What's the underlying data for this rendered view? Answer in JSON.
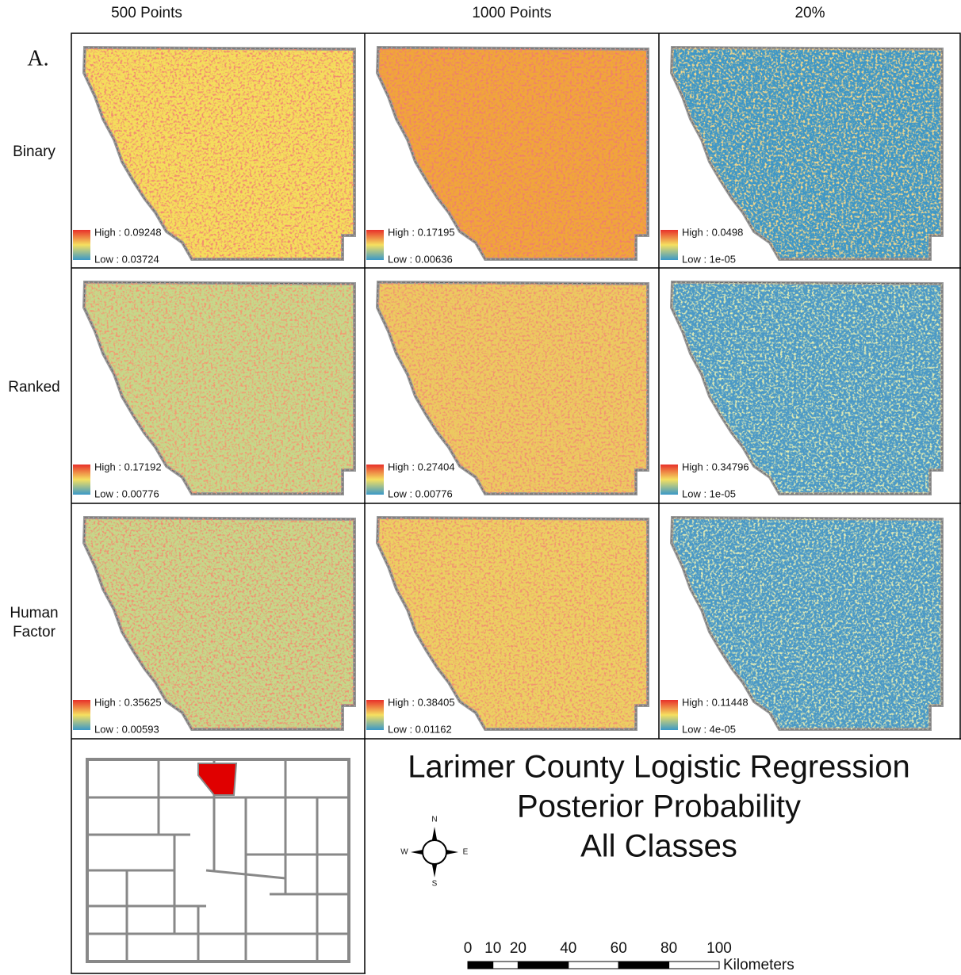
{
  "column_headers": [
    "500 Points",
    "1000 Points",
    "20%"
  ],
  "panel_label": "A.",
  "rows": [
    {
      "label": "Binary",
      "panels": [
        {
          "high": "High : 0.09248",
          "low": "Low : 0.03724"
        },
        {
          "high": "High : 0.17195",
          "low": "Low : 0.00636"
        },
        {
          "high": "High : 0.0498",
          "low": "Low : 1e-05"
        }
      ]
    },
    {
      "label": "Ranked",
      "panels": [
        {
          "high": "High : 0.17192",
          "low": "Low : 0.00776"
        },
        {
          "high": "High : 0.27404",
          "low": "Low : 0.00776"
        },
        {
          "high": "High : 0.34796",
          "low": "Low : 1e-05"
        }
      ]
    },
    {
      "label": "Human Factor",
      "panels": [
        {
          "high": "High : 0.35625",
          "low": "Low : 0.00593"
        },
        {
          "high": "High : 0.38405",
          "low": "Low : 0.01162"
        },
        {
          "high": "High : 0.11448",
          "low": "Low : 4e-05"
        }
      ]
    }
  ],
  "title": [
    "Larimer County Logistic Regression",
    "Posterior Probability",
    "All Classes"
  ],
  "compass": {
    "n": "N",
    "s": "S",
    "e": "E",
    "w": "W"
  },
  "scale_bar": {
    "ticks": [
      0,
      10,
      20,
      40,
      60,
      80,
      100
    ],
    "unit": "Kilometers"
  }
}
